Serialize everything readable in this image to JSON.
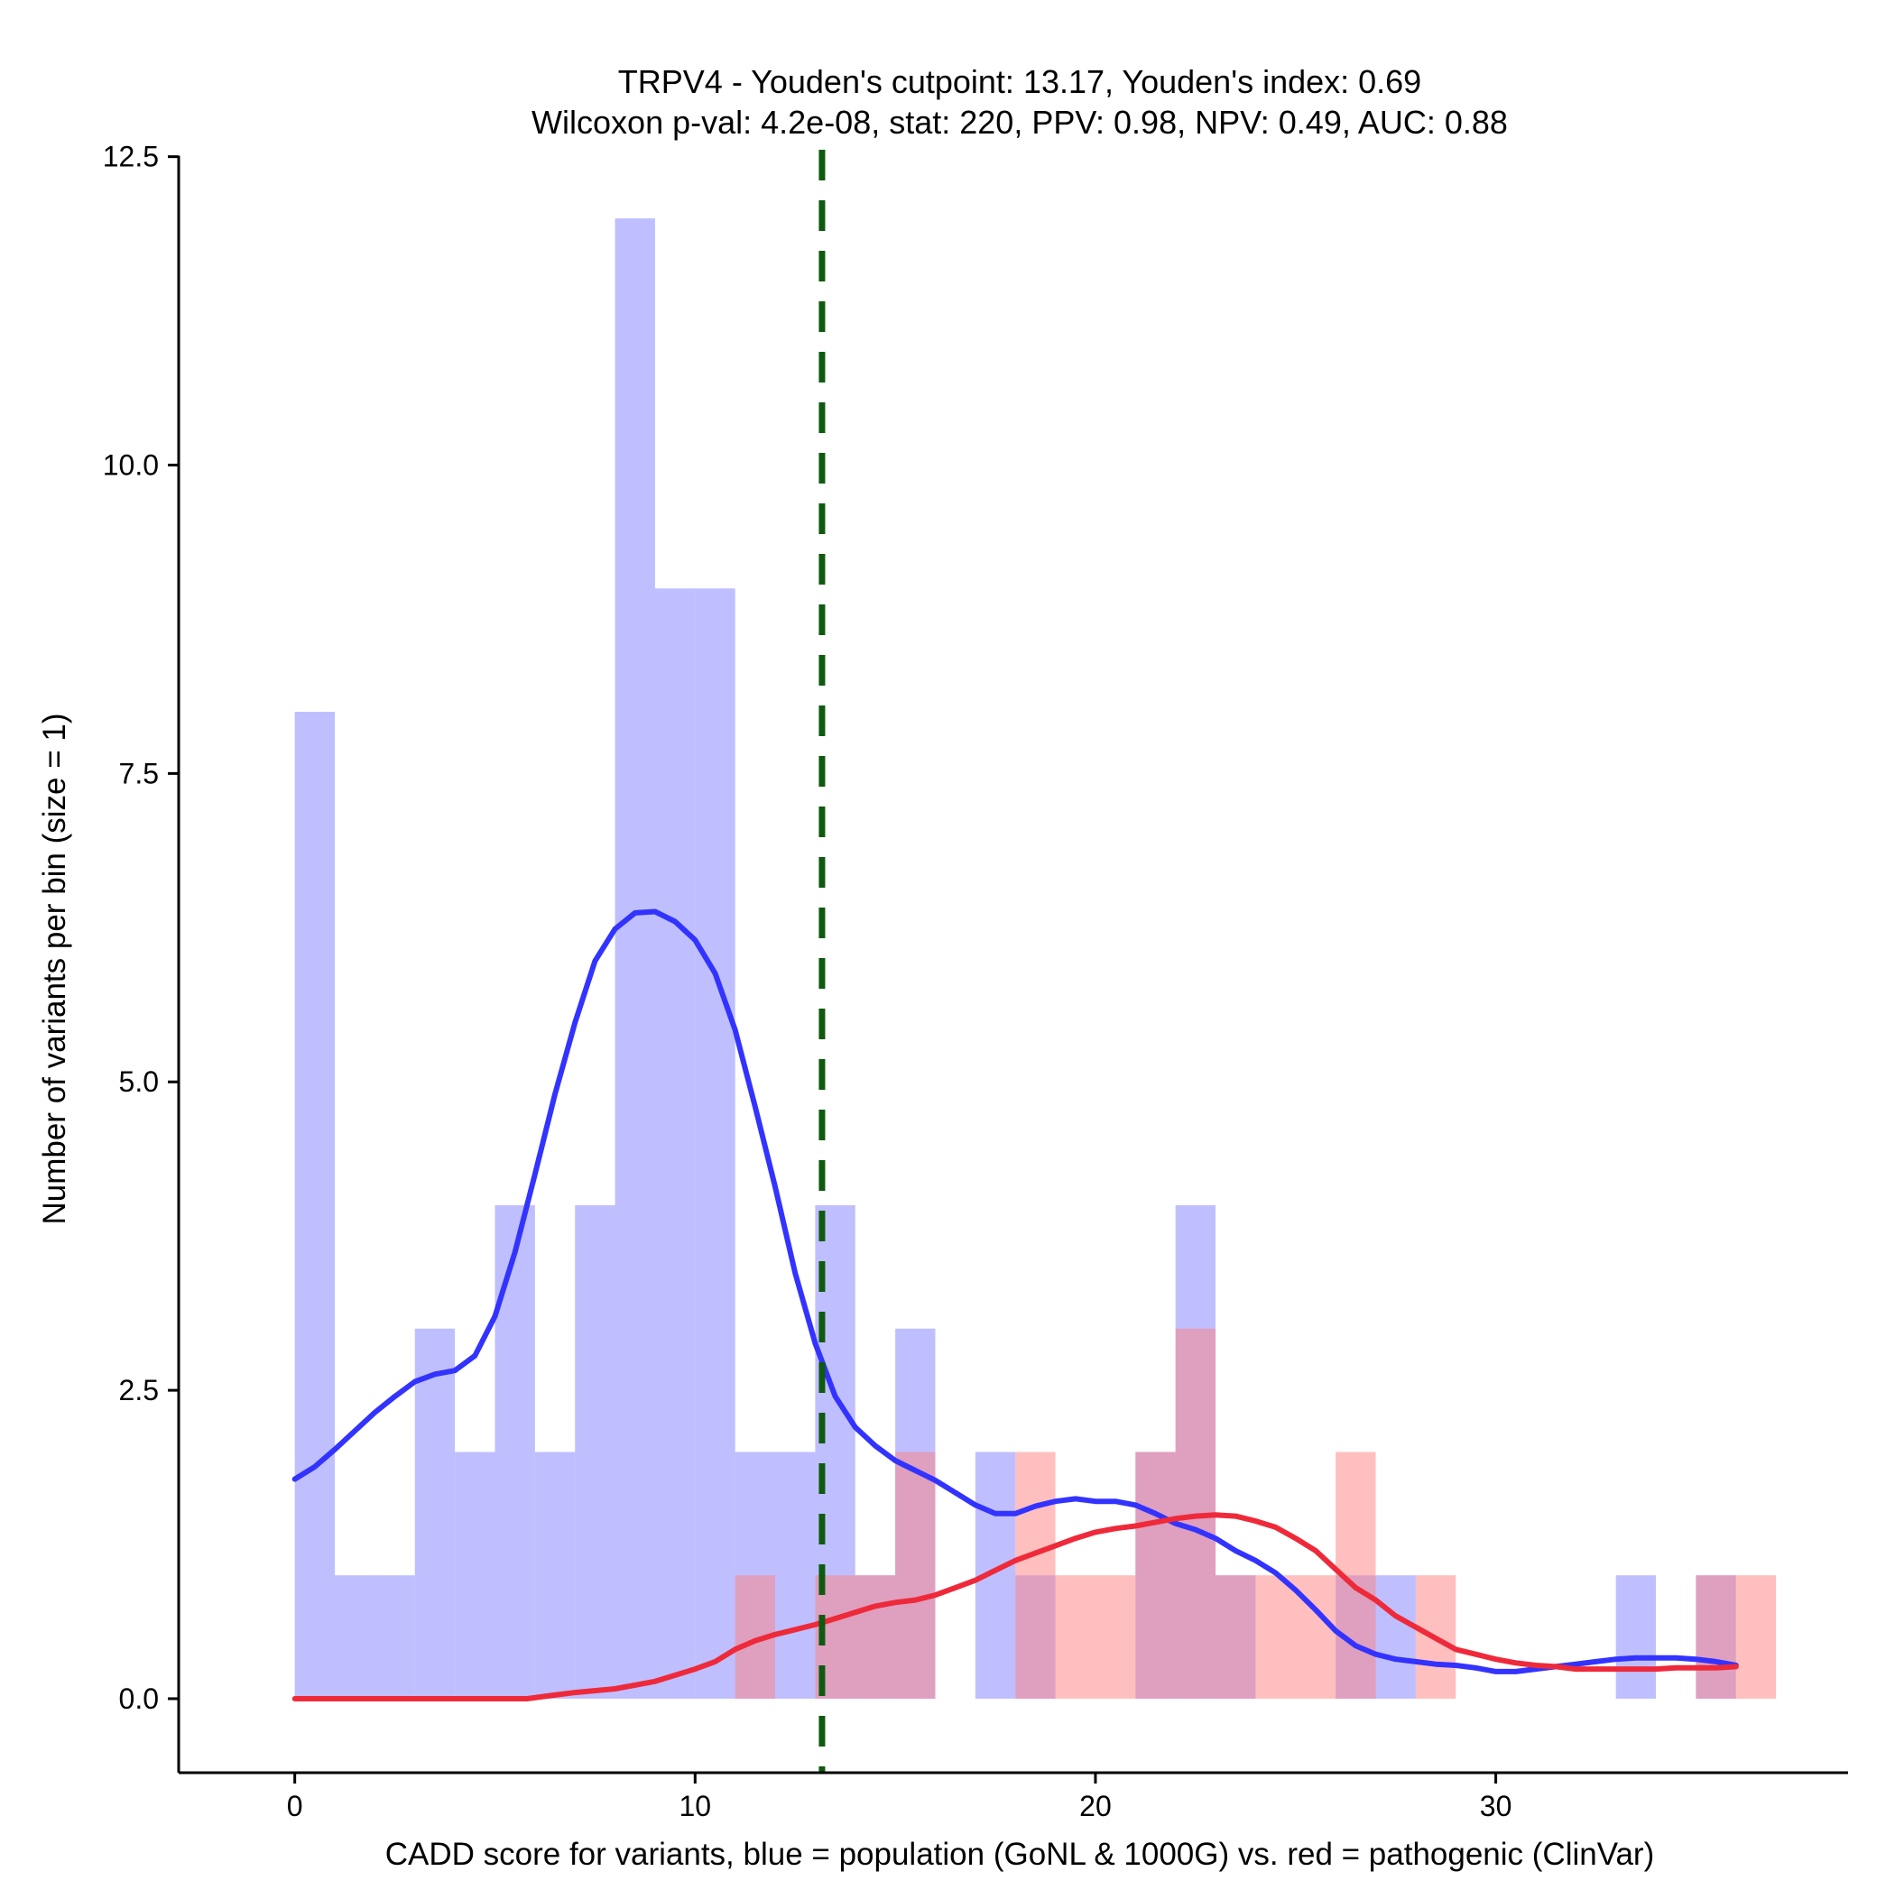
{
  "chart_data": {
    "type": "bar",
    "title_line1": "TRPV4 - Youden's cutpoint: 13.17, Youden's index: 0.69",
    "title_line2": "Wilcoxon p-val: 4.2e-08, stat: 220, PPV: 0.98, NPV: 0.49, AUC: 0.88",
    "xlabel": "CADD score for variants, blue = population (GoNL & 1000G) vs. red = pathogenic (ClinVar)",
    "ylabel": "Number of variants per bin (size = 1)",
    "xlim": [
      -2.9,
      38.8
    ],
    "ylim": [
      -0.6,
      12.6
    ],
    "xticks": [
      0,
      10,
      20,
      30
    ],
    "xtick_labels": [
      "0",
      "10",
      "20",
      "30"
    ],
    "yticks": [
      0,
      2.5,
      5,
      7.5,
      10,
      12.5
    ],
    "ytick_labels": [
      "0.0",
      "2.5",
      "5.0",
      "7.5",
      "10.0",
      "12.5"
    ],
    "bin_width": 1,
    "cutpoint": 13.17,
    "colors": {
      "population_fill": "#8080ff",
      "pathogenic_fill": "#ff7f80",
      "population_line": "#3333ff",
      "pathogenic_line": "#ee2a3a",
      "cutpoint_line": "#0f5a0f",
      "axis": "#000000"
    },
    "series": [
      {
        "name": "population (GoNL & 1000G)",
        "bins": [
          {
            "x": 0,
            "count": 8
          },
          {
            "x": 1,
            "count": 1
          },
          {
            "x": 2,
            "count": 1
          },
          {
            "x": 3,
            "count": 3
          },
          {
            "x": 4,
            "count": 2
          },
          {
            "x": 5,
            "count": 4
          },
          {
            "x": 6,
            "count": 2
          },
          {
            "x": 7,
            "count": 4
          },
          {
            "x": 8,
            "count": 12
          },
          {
            "x": 9,
            "count": 9
          },
          {
            "x": 10,
            "count": 9
          },
          {
            "x": 11,
            "count": 2
          },
          {
            "x": 12,
            "count": 2
          },
          {
            "x": 13,
            "count": 4
          },
          {
            "x": 14,
            "count": 1
          },
          {
            "x": 15,
            "count": 3
          },
          {
            "x": 17,
            "count": 2
          },
          {
            "x": 18,
            "count": 1
          },
          {
            "x": 21,
            "count": 2
          },
          {
            "x": 22,
            "count": 4
          },
          {
            "x": 23,
            "count": 1
          },
          {
            "x": 26,
            "count": 1
          },
          {
            "x": 27,
            "count": 1
          },
          {
            "x": 33,
            "count": 1
          },
          {
            "x": 35,
            "count": 1
          }
        ]
      },
      {
        "name": "pathogenic (ClinVar)",
        "bins": [
          {
            "x": 11,
            "count": 1
          },
          {
            "x": 13,
            "count": 1
          },
          {
            "x": 14,
            "count": 1
          },
          {
            "x": 15,
            "count": 2
          },
          {
            "x": 18,
            "count": 2
          },
          {
            "x": 19,
            "count": 1
          },
          {
            "x": 20,
            "count": 1
          },
          {
            "x": 21,
            "count": 2
          },
          {
            "x": 22,
            "count": 3
          },
          {
            "x": 23,
            "count": 1
          },
          {
            "x": 24,
            "count": 1
          },
          {
            "x": 25,
            "count": 1
          },
          {
            "x": 26,
            "count": 2
          },
          {
            "x": 28,
            "count": 1
          },
          {
            "x": 35,
            "count": 1
          },
          {
            "x": 36,
            "count": 1
          }
        ]
      }
    ],
    "density_curves": [
      {
        "name": "population density",
        "points": [
          [
            0,
            1.78
          ],
          [
            0.5,
            1.88
          ],
          [
            1,
            2.02
          ],
          [
            1.5,
            2.17
          ],
          [
            2,
            2.32
          ],
          [
            2.5,
            2.45
          ],
          [
            3,
            2.57
          ],
          [
            3.5,
            2.63
          ],
          [
            4,
            2.66
          ],
          [
            4.5,
            2.78
          ],
          [
            5,
            3.1
          ],
          [
            5.5,
            3.62
          ],
          [
            6,
            4.25
          ],
          [
            6.5,
            4.9
          ],
          [
            7,
            5.48
          ],
          [
            7.5,
            5.98
          ],
          [
            8,
            6.24
          ],
          [
            8.5,
            6.37
          ],
          [
            9,
            6.38
          ],
          [
            9.5,
            6.3
          ],
          [
            10,
            6.15
          ],
          [
            10.5,
            5.88
          ],
          [
            11,
            5.42
          ],
          [
            11.5,
            4.8
          ],
          [
            12,
            4.15
          ],
          [
            12.5,
            3.45
          ],
          [
            13,
            2.88
          ],
          [
            13.5,
            2.45
          ],
          [
            14,
            2.2
          ],
          [
            14.5,
            2.05
          ],
          [
            15,
            1.93
          ],
          [
            15.5,
            1.85
          ],
          [
            16,
            1.77
          ],
          [
            16.5,
            1.67
          ],
          [
            17,
            1.57
          ],
          [
            17.5,
            1.5
          ],
          [
            18,
            1.5
          ],
          [
            18.5,
            1.56
          ],
          [
            19,
            1.6
          ],
          [
            19.5,
            1.62
          ],
          [
            20,
            1.6
          ],
          [
            20.5,
            1.6
          ],
          [
            21,
            1.57
          ],
          [
            21.5,
            1.5
          ],
          [
            22,
            1.42
          ],
          [
            22.5,
            1.37
          ],
          [
            23,
            1.3
          ],
          [
            23.5,
            1.2
          ],
          [
            24,
            1.12
          ],
          [
            24.5,
            1.02
          ],
          [
            25,
            0.88
          ],
          [
            25.5,
            0.72
          ],
          [
            26,
            0.55
          ],
          [
            26.5,
            0.43
          ],
          [
            27,
            0.36
          ],
          [
            27.5,
            0.32
          ],
          [
            28,
            0.3
          ],
          [
            28.5,
            0.28
          ],
          [
            29,
            0.27
          ],
          [
            29.5,
            0.25
          ],
          [
            30,
            0.22
          ],
          [
            30.5,
            0.22
          ],
          [
            31,
            0.24
          ],
          [
            31.5,
            0.26
          ],
          [
            32,
            0.28
          ],
          [
            32.5,
            0.3
          ],
          [
            33,
            0.32
          ],
          [
            33.5,
            0.33
          ],
          [
            34,
            0.33
          ],
          [
            34.5,
            0.33
          ],
          [
            35,
            0.32
          ],
          [
            35.5,
            0.3
          ],
          [
            36,
            0.27
          ]
        ]
      },
      {
        "name": "pathogenic density",
        "points": [
          [
            0,
            0
          ],
          [
            1,
            0
          ],
          [
            2,
            0
          ],
          [
            3,
            0
          ],
          [
            4,
            0
          ],
          [
            5,
            0
          ],
          [
            5.8,
            0
          ],
          [
            6.5,
            0.03
          ],
          [
            7,
            0.05
          ],
          [
            8,
            0.08
          ],
          [
            9,
            0.14
          ],
          [
            10,
            0.24
          ],
          [
            10.5,
            0.3
          ],
          [
            11,
            0.4
          ],
          [
            11.5,
            0.47
          ],
          [
            12,
            0.52
          ],
          [
            12.5,
            0.56
          ],
          [
            13,
            0.6
          ],
          [
            13.5,
            0.65
          ],
          [
            14,
            0.7
          ],
          [
            14.5,
            0.75
          ],
          [
            15,
            0.78
          ],
          [
            15.5,
            0.8
          ],
          [
            16,
            0.84
          ],
          [
            16.5,
            0.9
          ],
          [
            17,
            0.96
          ],
          [
            17.5,
            1.04
          ],
          [
            18,
            1.12
          ],
          [
            18.5,
            1.18
          ],
          [
            19,
            1.24
          ],
          [
            19.5,
            1.3
          ],
          [
            20,
            1.35
          ],
          [
            20.5,
            1.38
          ],
          [
            21,
            1.4
          ],
          [
            21.5,
            1.43
          ],
          [
            22,
            1.46
          ],
          [
            22.5,
            1.48
          ],
          [
            23,
            1.49
          ],
          [
            23.5,
            1.48
          ],
          [
            24,
            1.44
          ],
          [
            24.5,
            1.39
          ],
          [
            25,
            1.3
          ],
          [
            25.5,
            1.2
          ],
          [
            26,
            1.05
          ],
          [
            26.5,
            0.9
          ],
          [
            27,
            0.8
          ],
          [
            27.5,
            0.67
          ],
          [
            28,
            0.58
          ],
          [
            28.5,
            0.49
          ],
          [
            29,
            0.4
          ],
          [
            29.5,
            0.36
          ],
          [
            30,
            0.32
          ],
          [
            30.5,
            0.29
          ],
          [
            31,
            0.27
          ],
          [
            31.5,
            0.26
          ],
          [
            32,
            0.24
          ],
          [
            32.5,
            0.24
          ],
          [
            33,
            0.24
          ],
          [
            33.5,
            0.24
          ],
          [
            34,
            0.24
          ],
          [
            34.5,
            0.25
          ],
          [
            35,
            0.25
          ],
          [
            35.5,
            0.25
          ],
          [
            36,
            0.26
          ]
        ]
      }
    ]
  }
}
